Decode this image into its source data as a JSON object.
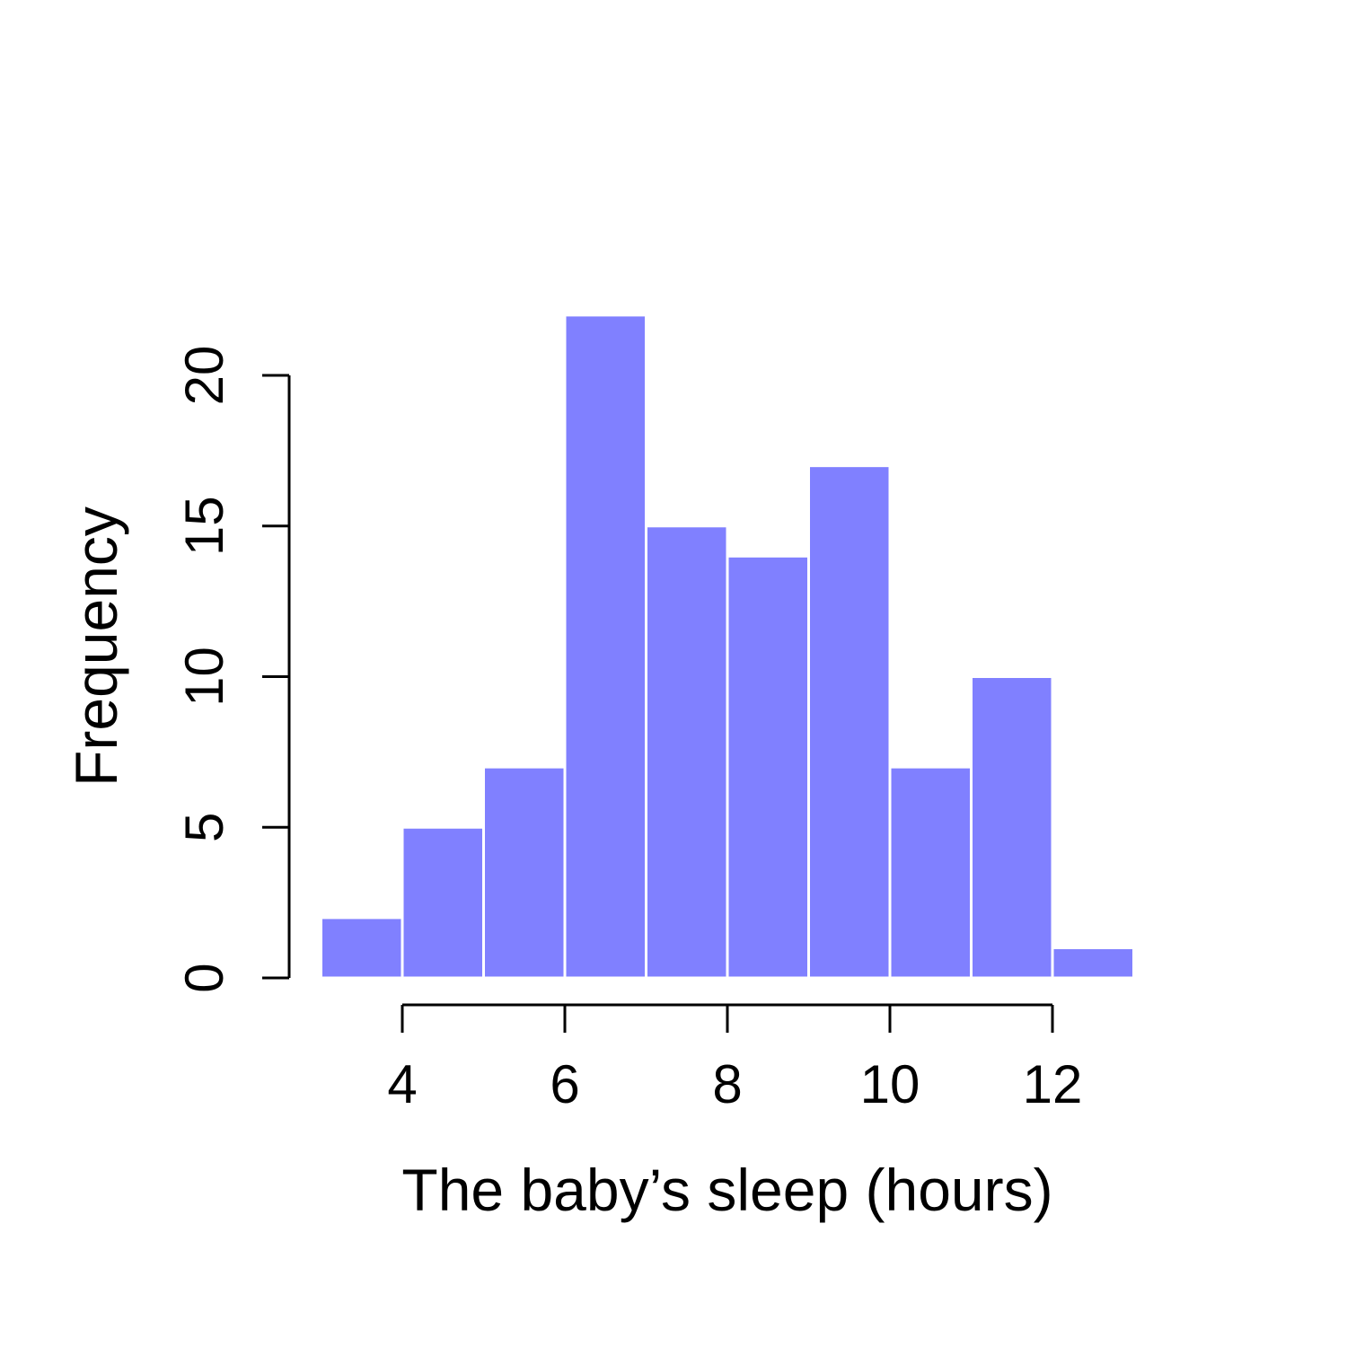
{
  "chart_data": {
    "type": "bar",
    "subtype": "histogram",
    "bins": [
      {
        "x0": 3,
        "x1": 4,
        "count": 2
      },
      {
        "x0": 4,
        "x1": 5,
        "count": 5
      },
      {
        "x0": 5,
        "x1": 6,
        "count": 7
      },
      {
        "x0": 6,
        "x1": 7,
        "count": 22
      },
      {
        "x0": 7,
        "x1": 8,
        "count": 15
      },
      {
        "x0": 8,
        "x1": 9,
        "count": 14
      },
      {
        "x0": 9,
        "x1": 10,
        "count": 17
      },
      {
        "x0": 10,
        "x1": 11,
        "count": 7
      },
      {
        "x0": 11,
        "x1": 12,
        "count": 10
      },
      {
        "x0": 12,
        "x1": 13,
        "count": 1
      }
    ],
    "xlabel": "The baby’s sleep (hours)",
    "ylabel": "Frequency",
    "x_ticks": [
      "4",
      "6",
      "8",
      "10",
      "12"
    ],
    "y_ticks": [
      "0",
      "5",
      "10",
      "15",
      "20"
    ],
    "xlim": [
      3,
      13
    ],
    "ylim": [
      0,
      22
    ],
    "grid": false,
    "bar_color": "#8080ff",
    "bar_edge_color": "#ffffff"
  }
}
